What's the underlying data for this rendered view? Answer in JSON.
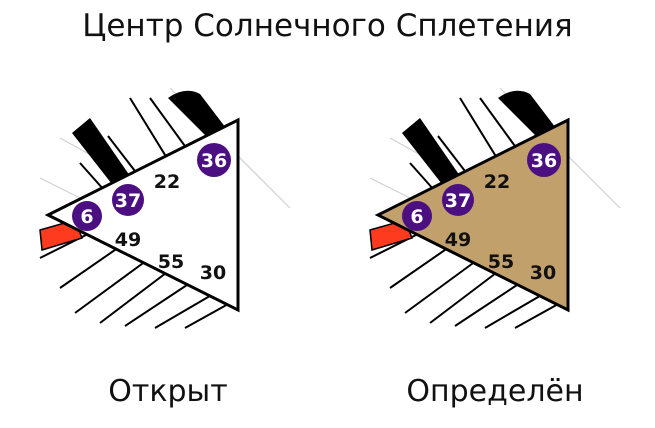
{
  "title": "Центр Солнечного Сплетения",
  "colors": {
    "defined_fill": "#c1a06b",
    "open_fill": "#ffffff",
    "activated_gate": "#4b0f82",
    "hanging_gate": "#ff3b1f",
    "channel_line": "#000000",
    "thin_line": "#cccccc"
  },
  "gates": {
    "g36": "36",
    "g22": "22",
    "g37": "37",
    "g6": "6",
    "g49": "49",
    "g55": "55",
    "g30": "30"
  },
  "panels": [
    {
      "id": "open",
      "caption": "Открыт"
    },
    {
      "id": "defined",
      "caption": "Определён"
    }
  ]
}
